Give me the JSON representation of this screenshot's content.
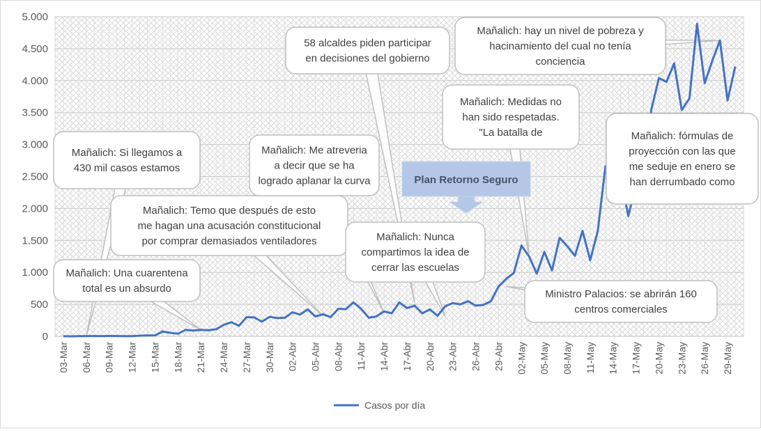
{
  "chart_data": {
    "type": "line",
    "title": "",
    "xlabel": "",
    "ylabel": "",
    "ylim": [
      0,
      5000
    ],
    "yticks": [
      0,
      500,
      1000,
      1500,
      2000,
      2500,
      3000,
      3500,
      4000,
      4500,
      5000
    ],
    "ytick_labels": [
      "0",
      "500",
      "1.000",
      "1.500",
      "2.000",
      "2.500",
      "3.000",
      "3.500",
      "4.000",
      "4.500",
      "5.000"
    ],
    "grid": true,
    "legend_position": "bottom",
    "x": [
      "03-Mar",
      "04-Mar",
      "05-Mar",
      "06-Mar",
      "07-Mar",
      "08-Mar",
      "09-Mar",
      "10-Mar",
      "11-Mar",
      "12-Mar",
      "13-Mar",
      "14-Mar",
      "15-Mar",
      "16-Mar",
      "17-Mar",
      "18-Mar",
      "19-Mar",
      "20-Mar",
      "21-Mar",
      "22-Mar",
      "23-Mar",
      "24-Mar",
      "25-Mar",
      "26-Mar",
      "27-Mar",
      "28-Mar",
      "29-Mar",
      "30-Mar",
      "31-Mar",
      "01-Abr",
      "02-Abr",
      "03-Abr",
      "04-Abr",
      "05-Abr",
      "06-Abr",
      "07-Abr",
      "08-Abr",
      "09-Abr",
      "10-Abr",
      "11-Abr",
      "12-Abr",
      "13-Abr",
      "14-Abr",
      "15-Abr",
      "16-Abr",
      "17-Abr",
      "18-Abr",
      "19-Abr",
      "20-Abr",
      "21-Abr",
      "22-Abr",
      "23-Abr",
      "24-Abr",
      "25-Abr",
      "26-Abr",
      "27-Abr",
      "28-Abr",
      "29-Abr",
      "30-Abr",
      "01-May",
      "02-May",
      "03-May",
      "04-May",
      "05-May",
      "06-May",
      "07-May",
      "08-May",
      "09-May",
      "10-May",
      "11-May",
      "12-May",
      "13-May",
      "14-May",
      "15-May",
      "16-May",
      "17-May",
      "18-May",
      "19-May",
      "20-May",
      "21-May",
      "22-May",
      "23-May",
      "24-May",
      "25-May",
      "26-May",
      "27-May",
      "28-May",
      "29-May",
      "30-May"
    ],
    "x_tick_labels": [
      "03-Mar",
      "06-Mar",
      "09-Mar",
      "12-Mar",
      "15-Mar",
      "18-Mar",
      "21-Mar",
      "24-Mar",
      "27-Mar",
      "30-Mar",
      "02-Abr",
      "05-Abr",
      "08-Abr",
      "11-Abr",
      "14-Abr",
      "17-Abr",
      "20-Abr",
      "23-Abr",
      "26-Abr",
      "29-Abr",
      "02-May",
      "05-May",
      "08-May",
      "11-May",
      "14-May",
      "17-May",
      "20-May",
      "23-May",
      "26-May",
      "29-May"
    ],
    "series": [
      {
        "name": "Casos por día",
        "color": "#4472c4",
        "values": [
          1,
          0,
          2,
          3,
          4,
          3,
          5,
          4,
          3,
          2,
          10,
          13,
          15,
          75,
          55,
          40,
          100,
          90,
          100,
          95,
          110,
          180,
          220,
          165,
          300,
          295,
          230,
          305,
          285,
          290,
          375,
          340,
          420,
          310,
          345,
          300,
          430,
          425,
          530,
          430,
          290,
          310,
          390,
          360,
          530,
          440,
          480,
          360,
          420,
          320,
          470,
          520,
          500,
          550,
          480,
          490,
          550,
          780,
          900,
          990,
          1420,
          1250,
          980,
          1320,
          1030,
          1540,
          1410,
          1260,
          1650,
          1190,
          1650,
          2660,
          2660,
          2500,
          1880,
          2380,
          2280,
          3540,
          4040,
          3980,
          4270,
          3540,
          3720,
          4890,
          3960,
          4310,
          4630,
          3690,
          4220
        ]
      }
    ],
    "annotations": [
      {
        "text": [
          "Mañalich: Si llegamos a",
          "430 mil casos estamos"
        ]
      },
      {
        "text": [
          "Mañalich: Una cuarentena",
          "total es un absurdo"
        ]
      },
      {
        "text": [
          "Mañalich: Temo que después de esto",
          "me hagan una acusación constitucional",
          "por comprar demasiados ventiladores"
        ]
      },
      {
        "text": [
          "Mañalich: Me atreveria",
          "a decir que se ha",
          "logrado aplanar la curva"
        ]
      },
      {
        "text": [
          "58 alcaldes piden participar",
          "en decisiones del gobierno"
        ]
      },
      {
        "text": [
          "Plan Retorno Seguro"
        ]
      },
      {
        "text": [
          "Mañalich: Nunca",
          "compartimos la idea de",
          "cerrar las escuelas"
        ]
      },
      {
        "text": [
          "Mañalich: Medidas no",
          "han sido respetadas.",
          "\"La batalla de"
        ]
      },
      {
        "text": [
          "Mañalich: hay un nivel de pobreza y",
          "hacinamiento del cual no tenía",
          "conciencia"
        ]
      },
      {
        "text": [
          "Mañalich: fórmulas de",
          "proyección con las que",
          "me seduje en enero se",
          "han derrumbado como"
        ]
      },
      {
        "text": [
          "Ministro Palacios: se abrirán 160",
          "centros comerciales"
        ]
      }
    ]
  }
}
